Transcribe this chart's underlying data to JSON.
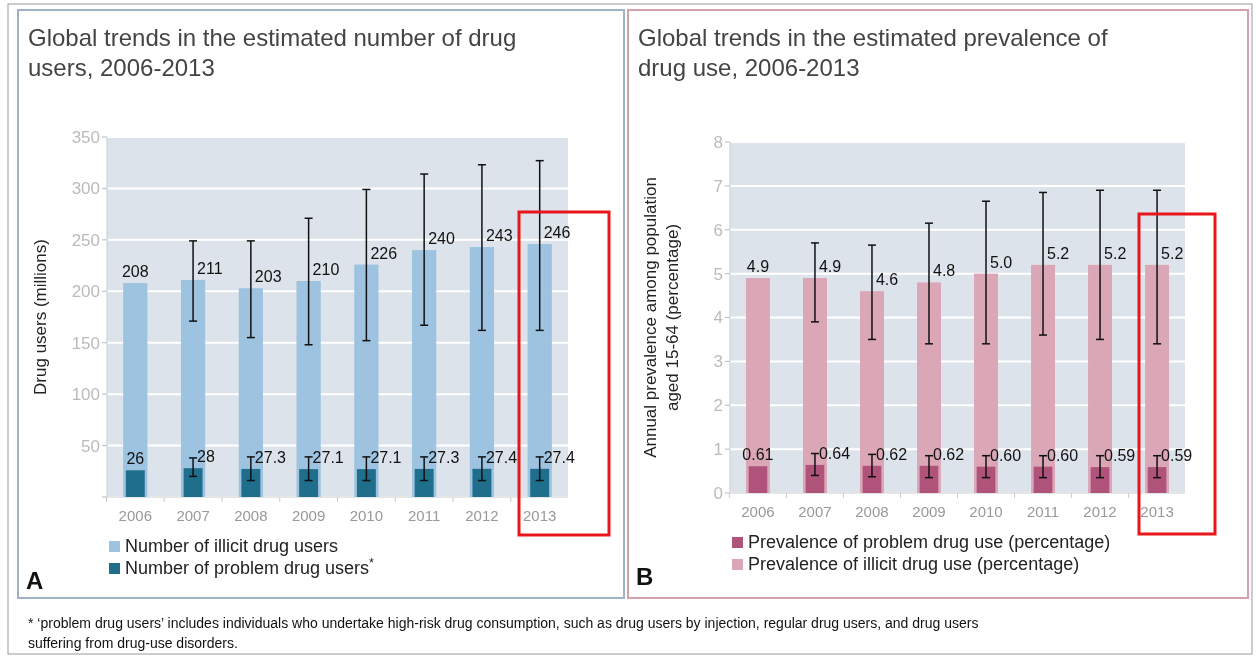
{
  "chart_data": [
    {
      "type": "bar",
      "title": "Global trends in the estimated number of drug users, 2006-2013",
      "ylabel": "Drug users (millions)",
      "categories": [
        "2006",
        "2007",
        "2008",
        "2009",
        "2010",
        "2011",
        "2012",
        "2013"
      ],
      "series": [
        {
          "name": "Number of illicit drug users",
          "color": "#9dc3e0",
          "values": [
            208,
            211,
            203,
            210,
            226,
            240,
            243,
            246
          ],
          "errors": [
            null,
            [
              171,
              249
            ],
            [
              155,
              249
            ],
            [
              148,
              271
            ],
            [
              152,
              299
            ],
            [
              167,
              314
            ],
            [
              162,
              323
            ],
            [
              162,
              327
            ]
          ]
        },
        {
          "name": "Number of problem drug users$^{*}$",
          "color": "#1f6e8c",
          "values": [
            26,
            28,
            27.3,
            27.1,
            27.1,
            27.3,
            27.4,
            27.4
          ],
          "errors": [
            null,
            [
              20,
              38
            ],
            [
              16,
              39
            ],
            [
              16,
              39
            ],
            [
              16,
              39
            ],
            [
              16,
              39
            ],
            [
              16,
              39
            ],
            [
              16,
              39
            ]
          ]
        }
      ],
      "ylim": [
        0,
        350
      ],
      "yticks": [
        {
          "value": 0,
          "label": null
        },
        50,
        100,
        150,
        200,
        250,
        300,
        350
      ],
      "grid": "y",
      "legend": "bottom",
      "data_labels": true,
      "annotations": [
        "A",
        "* ‘problem drug users’ includes individuals who undertake high-risk drug consumption, such as drug users by injection, regular drug users, and drug users suffering from drug-use disorders."
      ]
    },
    {
      "type": "bar",
      "title": "Global trends in the estimated prevalence of drug use, 2006-2013",
      "ylabel": "Annual prevalence among population aged 15-64 (percentage)",
      "categories": [
        "2006",
        "2007",
        "2008",
        "2009",
        "2010",
        "2011",
        "2012",
        "2013"
      ],
      "series": [
        {
          "name": "Prevalence of problem drug use (percentage)",
          "color": "#b0537a",
          "values": [
            0.61,
            0.64,
            0.62,
            0.62,
            0.6,
            0.6,
            0.59,
            0.59
          ],
          "value_labels": [
            "0.61",
            "0.64",
            "0.62",
            "0.62",
            "0.60",
            "0.60",
            "0.59",
            "0.59"
          ],
          "errors": [
            null,
            [
              0.4,
              0.9
            ],
            [
              0.37,
              0.88
            ],
            [
              0.35,
              0.85
            ],
            [
              0.35,
              0.85
            ],
            [
              0.35,
              0.85
            ],
            [
              0.35,
              0.85
            ],
            [
              0.35,
              0.85
            ]
          ]
        },
        {
          "name": "Prevalence of illicit drug use (percentage)",
          "color": "#dba7b7",
          "values": [
            4.9,
            4.9,
            4.6,
            4.8,
            5.0,
            5.2,
            5.2,
            5.2
          ],
          "value_labels": [
            "4.9",
            "4.9",
            "4.6",
            "4.8",
            "5.0",
            "5.2",
            "5.2",
            "5.2"
          ],
          "errors": [
            null,
            [
              3.9,
              5.7
            ],
            [
              3.5,
              5.65
            ],
            [
              3.4,
              6.15
            ],
            [
              3.4,
              6.65
            ],
            [
              3.6,
              6.85
            ],
            [
              3.5,
              6.9
            ],
            [
              3.4,
              6.9
            ]
          ]
        }
      ],
      "ylim": [
        0,
        8
      ],
      "yticks": [
        0,
        1,
        2,
        3,
        4,
        5,
        6,
        7,
        8
      ],
      "grid": "y",
      "legend": "bottom",
      "annotations": [
        "B"
      ]
    }
  ]
}
